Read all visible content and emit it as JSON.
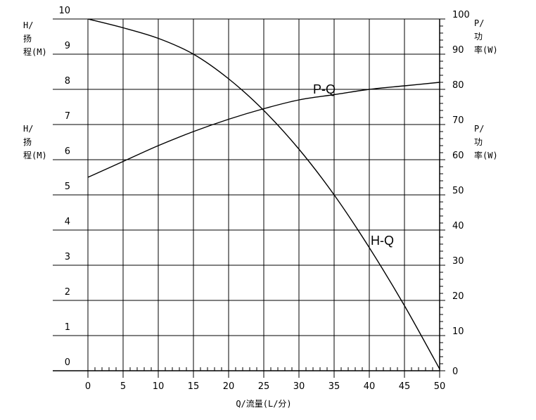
{
  "chart_data": {
    "type": "line",
    "x": {
      "label": "Q/流量(L/分)",
      "range": [
        0,
        50
      ],
      "ticks": [
        "0",
        "5",
        "10",
        "15",
        "20",
        "25",
        "30",
        "35",
        "40",
        "45",
        "50"
      ],
      "minor_step": 1
    },
    "y_left": {
      "label_lines": [
        "H/",
        "扬",
        "程(M)"
      ],
      "range": [
        0,
        10
      ],
      "ticks": [
        "0",
        "1",
        "2",
        "3",
        "4",
        "5",
        "6",
        "7",
        "8",
        "9",
        "10"
      ]
    },
    "y_right": {
      "label_lines": [
        "P/",
        "功",
        "率(W)"
      ],
      "range": [
        0,
        100
      ],
      "ticks": [
        "0",
        "10",
        "20",
        "30",
        "40",
        "50",
        "60",
        "70",
        "80",
        "90",
        "100"
      ],
      "minor_step": 2
    },
    "grid": true,
    "series": [
      {
        "name": "H-Q",
        "axis": "left",
        "x": [
          0,
          5,
          10,
          15,
          20,
          25,
          30,
          35,
          40,
          45,
          50
        ],
        "values": [
          10,
          9.75,
          9.45,
          9.0,
          8.3,
          7.4,
          6.3,
          5.0,
          3.5,
          1.85,
          0.05
        ]
      },
      {
        "name": "P-Q",
        "axis": "right",
        "x": [
          0,
          5,
          10,
          15,
          20,
          25,
          30,
          35,
          40,
          45,
          50
        ],
        "values": [
          55,
          59.5,
          64,
          68,
          71.5,
          74.5,
          77,
          78.5,
          80,
          81,
          82
        ]
      }
    ]
  }
}
